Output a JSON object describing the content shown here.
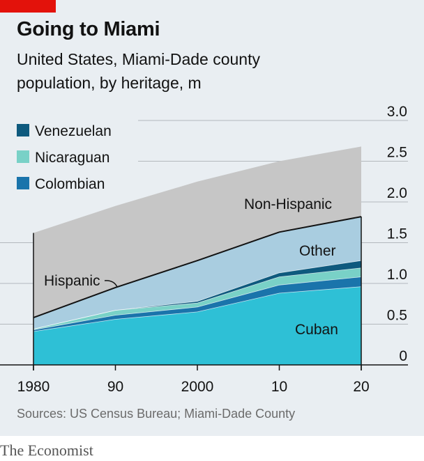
{
  "header": {
    "title": "Going to Miami",
    "subtitle_line1": "United States, Miami-Dade county",
    "subtitle_line2": "population, by heritage, m"
  },
  "footer": {
    "source": "Sources: US Census Bureau; Miami-Dade County",
    "brand": "The Economist"
  },
  "colors": {
    "panel": "#e9eef2",
    "accent_red": "#e3120b",
    "non_hispanic": "#c6c6c6",
    "other": "#a9cde0",
    "venezuelan": "#0e5a7e",
    "nicaraguan": "#79d1c7",
    "colombian": "#1a74ab",
    "cuban": "#2ec0d6",
    "total_line": "#121212"
  },
  "chart_data": {
    "type": "area",
    "stacked": true,
    "x": [
      1980,
      1990,
      2000,
      2010,
      2020
    ],
    "x_tick_labels": [
      "1980",
      "90",
      "2000",
      "10",
      "20"
    ],
    "ylim": [
      0,
      3.0
    ],
    "y_ticks": [
      0,
      0.5,
      1.0,
      1.5,
      2.0,
      2.5,
      3.0
    ],
    "y_tick_labels": [
      "0",
      "0.5",
      "1.0",
      "1.5",
      "2.0",
      "2.5",
      "3.0"
    ],
    "y_axis_side": "right",
    "grid": true,
    "series": [
      {
        "name": "Cuban",
        "key": "cuban",
        "values": [
          0.41,
          0.56,
          0.65,
          0.88,
          0.96
        ]
      },
      {
        "name": "Colombian",
        "key": "colombian",
        "values": [
          0.02,
          0.05,
          0.06,
          0.1,
          0.12
        ]
      },
      {
        "name": "Nicaraguan",
        "key": "nicaraguan",
        "values": [
          0.01,
          0.06,
          0.05,
          0.1,
          0.11
        ]
      },
      {
        "name": "Venezuelan",
        "key": "venezuelan",
        "values": [
          0.0,
          0.0,
          0.02,
          0.05,
          0.09
        ]
      },
      {
        "name": "Other",
        "key": "other",
        "values": [
          0.14,
          0.28,
          0.5,
          0.5,
          0.54
        ]
      },
      {
        "name": "Non-Hispanic",
        "key": "non_hispanic",
        "values": [
          1.04,
          1.0,
          0.97,
          0.87,
          0.86
        ]
      }
    ],
    "hispanic_total": [
      0.58,
      0.95,
      1.28,
      1.63,
      1.82
    ],
    "legend": {
      "placement": "top-left",
      "entries": [
        {
          "label": "Venezuelan",
          "key": "venezuelan"
        },
        {
          "label": "Nicaraguan",
          "key": "nicaraguan"
        },
        {
          "label": "Colombian",
          "key": "colombian"
        }
      ]
    },
    "annotations": {
      "hispanic": "Hispanic",
      "non_hispanic": "Non-Hispanic",
      "other": "Other",
      "cuban": "Cuban"
    }
  }
}
